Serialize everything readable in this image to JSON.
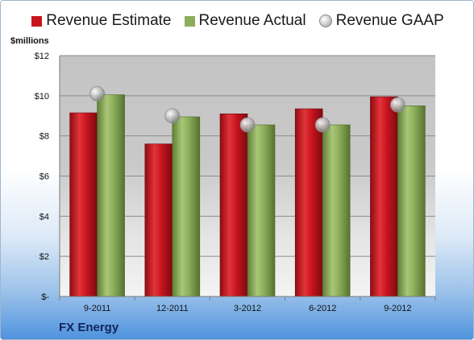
{
  "legend": {
    "estimate": "Revenue Estimate",
    "actual": "Revenue Actual",
    "gaap": "Revenue GAAP"
  },
  "y_unit_label": "$millions",
  "company_label": "FX Energy",
  "colors": {
    "estimate": "#c8141e",
    "actual": "#8cae5a",
    "gaap": "#a8a8a8"
  },
  "chart_data": {
    "type": "bar",
    "categories": [
      "9-2011",
      "12-2011",
      "3-2012",
      "6-2012",
      "9-2012"
    ],
    "series": [
      {
        "name": "Revenue Estimate",
        "type": "bar",
        "values": [
          9.15,
          7.6,
          9.1,
          9.35,
          9.95
        ]
      },
      {
        "name": "Revenue Actual",
        "type": "bar",
        "values": [
          10.05,
          8.95,
          8.55,
          8.55,
          9.5
        ]
      },
      {
        "name": "Revenue GAAP",
        "type": "scatter",
        "values": [
          10.1,
          9.0,
          8.55,
          8.55,
          9.55
        ]
      }
    ],
    "ylabel": "$millions",
    "ylim": [
      0,
      12
    ],
    "yticks": [
      0,
      2,
      4,
      6,
      8,
      10,
      12
    ],
    "ytick_labels": [
      "$-",
      "$2",
      "$4",
      "$6",
      "$8",
      "$10",
      "$12"
    ],
    "grid": true,
    "legend_position": "top"
  }
}
